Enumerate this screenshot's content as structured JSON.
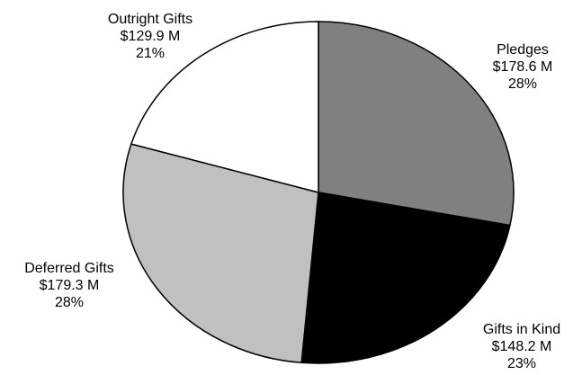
{
  "chart_data": {
    "type": "pie",
    "title": "",
    "start_angle_deg": 0,
    "direction": "clockwise",
    "slices": [
      {
        "label": "Pledges",
        "amount": "$178.6 M",
        "percent": "28%",
        "value": 178.6,
        "color": "#808080"
      },
      {
        "label": "Gifts in Kind",
        "amount": "$148.2 M",
        "percent": "23%",
        "value": 148.2,
        "color": "#000000"
      },
      {
        "label": "Deferred Gifts",
        "amount": "$179.3 M",
        "percent": "28%",
        "value": 179.3,
        "color": "#c0c0c0"
      },
      {
        "label": "Outright Gifts",
        "amount": "$129.9 M",
        "percent": "21%",
        "value": 129.9,
        "color": "#ffffff"
      }
    ]
  }
}
